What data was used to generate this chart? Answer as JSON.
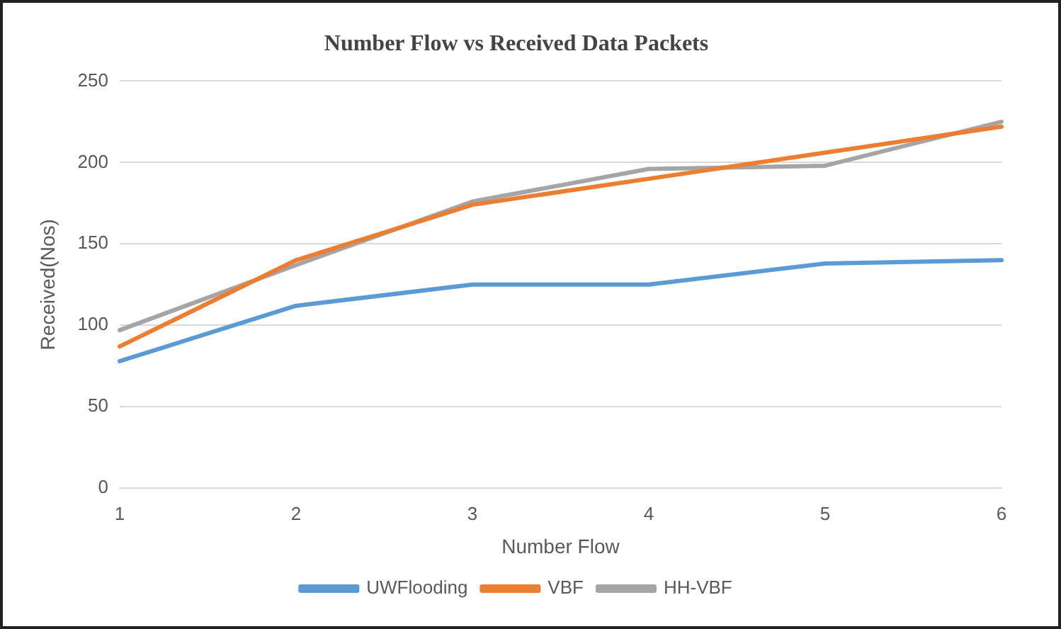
{
  "chart_data": {
    "type": "line",
    "title": "Number Flow vs Received Data Packets",
    "xlabel": "Number Flow",
    "ylabel": "Received(Nos)",
    "categories": [
      "1",
      "2",
      "3",
      "4",
      "5",
      "6"
    ],
    "series": [
      {
        "name": "UWFlooding",
        "color": "#5b9bd5",
        "values": [
          78,
          112,
          125,
          125,
          138,
          140
        ]
      },
      {
        "name": "VBF",
        "color": "#ed7d31",
        "values": [
          87,
          140,
          174,
          190,
          206,
          222
        ]
      },
      {
        "name": "HH-VBF",
        "color": "#a5a5a5",
        "values": [
          97,
          137,
          176,
          196,
          198,
          225
        ]
      }
    ],
    "ylim": [
      0,
      250
    ],
    "yticks": [
      0,
      50,
      100,
      150,
      200,
      250
    ],
    "grid": "y",
    "legend": "bottom",
    "marker": "none",
    "line_style": "solid"
  }
}
